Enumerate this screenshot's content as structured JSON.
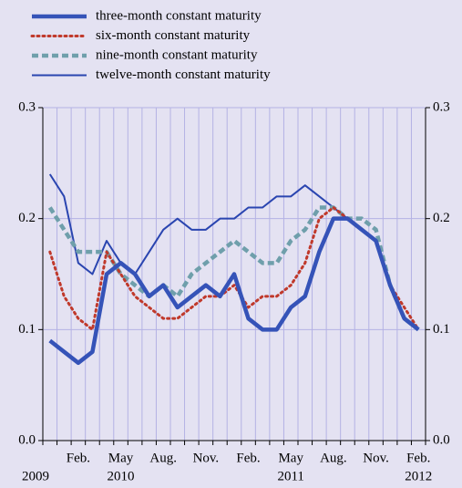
{
  "chart_data": {
    "type": "line",
    "categories": [
      null,
      null,
      "Feb.",
      null,
      null,
      "May",
      null,
      null,
      "Aug.",
      null,
      null,
      "Nov.",
      null,
      null,
      "Feb.",
      null,
      null,
      "May",
      null,
      null,
      "Aug.",
      null,
      null,
      "Nov.",
      null,
      null,
      "Feb."
    ],
    "category_years": [
      "2009",
      null,
      null,
      null,
      null,
      "2010",
      null,
      null,
      null,
      null,
      null,
      null,
      null,
      null,
      null,
      null,
      null,
      "2011",
      null,
      null,
      null,
      null,
      null,
      null,
      null,
      null,
      "2012"
    ],
    "series": [
      {
        "name": "three-month constant maturity",
        "color": "#3553b8",
        "style": "thick",
        "values": [
          0.09,
          0.08,
          0.07,
          0.08,
          0.15,
          0.16,
          0.15,
          0.13,
          0.14,
          0.12,
          0.13,
          0.14,
          0.13,
          0.15,
          0.11,
          0.1,
          0.1,
          0.12,
          0.13,
          0.17,
          0.2,
          0.2,
          0.19,
          0.18,
          0.14,
          0.11,
          0.1
        ]
      },
      {
        "name": "six-month constant maturity",
        "color": "#c0392b",
        "style": "dotted",
        "values": [
          0.17,
          0.13,
          0.11,
          0.1,
          0.17,
          0.15,
          0.13,
          0.12,
          0.11,
          0.11,
          0.12,
          0.13,
          0.13,
          0.14,
          0.12,
          0.13,
          0.13,
          0.14,
          0.16,
          0.2,
          0.21,
          0.2,
          0.19,
          0.18,
          0.14,
          0.12,
          0.1
        ]
      },
      {
        "name": "nine-month constant maturity",
        "color": "#6f9fab",
        "style": "dashed",
        "values": [
          0.21,
          0.19,
          0.17,
          0.17,
          0.17,
          0.15,
          0.14,
          0.13,
          0.14,
          0.13,
          0.15,
          0.16,
          0.17,
          0.18,
          0.17,
          0.16,
          0.16,
          0.18,
          0.19,
          0.21,
          0.21,
          0.2,
          0.2,
          0.19,
          0.14,
          0.11,
          0.1
        ]
      },
      {
        "name": "twelve-month constant maturity",
        "color": "#2a45b0",
        "style": "thin",
        "values": [
          0.24,
          0.22,
          0.16,
          0.15,
          0.18,
          0.16,
          0.15,
          0.17,
          0.19,
          0.2,
          0.19,
          0.19,
          0.2,
          0.2,
          0.21,
          0.21,
          0.22,
          0.22,
          0.23,
          0.22,
          0.21,
          0.2,
          0.19,
          0.18,
          0.14,
          0.11,
          0.1
        ]
      }
    ],
    "ylim": [
      0,
      0.3
    ],
    "yticks": [
      {
        "value": 0,
        "label": "0.0"
      },
      0.1,
      0.2,
      0.3
    ],
    "y2ticks_mirror": true,
    "grid": true
  }
}
